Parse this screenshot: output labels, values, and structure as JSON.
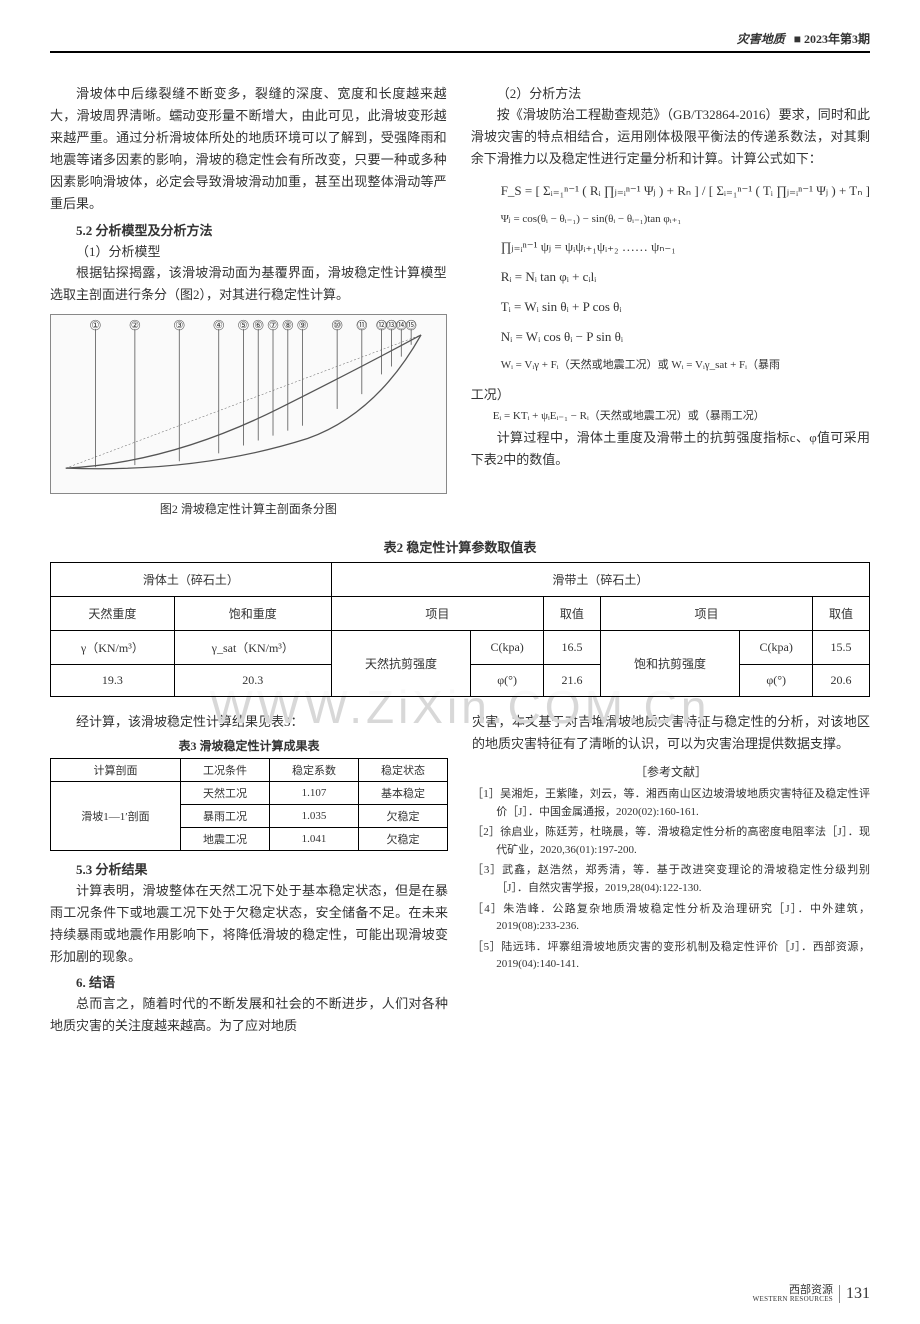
{
  "header": {
    "category": "灾害地质",
    "issue": "■ 2023年第3期"
  },
  "left_col": {
    "p1": "滑坡体中后缘裂缝不断变多，裂缝的深度、宽度和长度越来越大，滑坡周界清晰。蠕动变形量不断增大，由此可见，此滑坡变形越来越严重。通过分析滑坡体所处的地质环境可以了解到，受强降雨和地震等诸多因素的影响，滑坡的稳定性会有所改变，只要一种或多种因素影响滑坡体，必定会导致滑坡滑动加重，甚至出现整体滑动等严重后果。",
    "s52": "5.2 分析模型及分析方法",
    "s52_1": "（1）分析模型",
    "p2": "根据钻探揭露，该滑坡滑动面为基覆界面，滑坡稳定性计算模型选取主剖面进行条分（图2），对其进行稳定性计算。",
    "fig2_caption": "图2 滑坡稳定性计算主剖面条分图",
    "fig2_labels": [
      "①",
      "②",
      "③",
      "④",
      "⑤",
      "⑥",
      "⑦",
      "⑧",
      "⑨",
      "⑩",
      "⑪",
      "⑫",
      "⑬",
      "⑭",
      "⑮"
    ]
  },
  "right_col": {
    "s52_2": "（2）分析方法",
    "p3": "按《滑坡防治工程勘查规范》（GB/T32864-2016）要求，同时和此滑坡灾害的特点相结合，运用刚体极限平衡法的传递系数法，对其剩余下滑推力以及稳定性进行定量分析和计算。计算公式如下：",
    "formulas": {
      "fs": "F_S = [ Σᵢ₌₁ⁿ⁻¹ ( Rᵢ ∏ⱼ₌ᵢⁿ⁻¹ Ψⱼ ) + Rₙ ] / [ Σᵢ₌₁ⁿ⁻¹ ( Tᵢ ∏ⱼ₌ᵢⁿ⁻¹ Ψⱼ ) + Tₙ ]",
      "psi": "Ψⱼ = cos(θᵢ − θᵢ₋₁) − sin(θᵢ − θᵢ₋₁)tan φᵢ₊₁",
      "prod": "∏ⱼ₌ᵢⁿ⁻¹ ψⱼ = ψᵢψᵢ₊₁ψᵢ₊₂ …… ψₙ₋₁",
      "ri": "Rᵢ = Nᵢ tan φᵢ + cᵢlᵢ",
      "ti": "Tᵢ = Wᵢ sin θᵢ + P cos θᵢ",
      "ni": "Nᵢ = Wᵢ cos θᵢ − P sin θᵢ",
      "wi": "Wᵢ = Vᵢγ + Fᵢ（天然或地震工况）或 Wᵢ = Vᵢγ_sat + Fᵢ（暴雨",
      "wi2": "工况）",
      "ei": "Eᵢ = KTᵢ + ψᵢEᵢ₋₁ − Rᵢ（天然或地震工况）或（暴雨工况）"
    },
    "p4": "计算过程中，滑体土重度及滑带土的抗剪强度指标c、φ值可采用下表2中的数值。"
  },
  "table2": {
    "title": "表2  稳定性计算参数取值表",
    "group1": "滑体土（碎石土）",
    "group2": "滑带土（碎石土）",
    "h_nat": "天然重度",
    "h_sat": "饱和重度",
    "h_item": "项目",
    "h_val": "取值",
    "gamma": "γ（KN/m³）",
    "gamma_sat": "γ_sat（KN/m³）",
    "nat_strength": "天然抗剪强度",
    "sat_strength": "饱和抗剪强度",
    "c_label": "C(kpa)",
    "phi_label": "φ(°)",
    "gamma_val": "19.3",
    "gamma_sat_val": "20.3",
    "nat_c": "16.5",
    "nat_phi": "21.6",
    "sat_c": "15.5",
    "sat_phi": "20.6"
  },
  "lower_left": {
    "p5": "经计算，该滑坡稳定性计算结果见表3：",
    "t3_title": "表3  滑坡稳定性计算成果表",
    "t3_h1": "计算剖面",
    "t3_h2": "工况条件",
    "t3_h3": "稳定系数",
    "t3_h4": "稳定状态",
    "t3_profile": "滑坡1—1′剖面",
    "t3_r1_cond": "天然工况",
    "t3_r1_k": "1.107",
    "t3_r1_s": "基本稳定",
    "t3_r2_cond": "暴雨工况",
    "t3_r2_k": "1.035",
    "t3_r2_s": "欠稳定",
    "t3_r3_cond": "地震工况",
    "t3_r3_k": "1.041",
    "t3_r3_s": "欠稳定",
    "s53": "5.3 分析结果",
    "p6": "计算表明，滑坡整体在天然工况下处于基本稳定状态，但是在暴雨工况条件下或地震工况下处于欠稳定状态，安全储备不足。在未来持续暴雨或地震作用影响下，将降低滑坡的稳定性，可能出现滑坡变形加剧的现象。",
    "s6": "6. 结语",
    "p7": "总而言之，随着时代的不断发展和社会的不断进步，人们对各种地质灾害的关注度越来越高。为了应对地质"
  },
  "lower_right": {
    "p8": "灾害，本文基于对吉堆滑坡地质灾害特征与稳定性的分析，对该地区的地质灾害特征有了清晰的认识，可以为灾害治理提供数据支撑。",
    "refs_title": "［参考文献］",
    "refs": [
      "［1］吴湘炬，王紫隆，刘云，等．湘西南山区边坡滑坡地质灾害特征及稳定性评价［J］．中国金属通报，2020(02):160-161.",
      "［2］徐启业，陈廷芳，杜晓晨，等．滑坡稳定性分析的高密度电阻率法［J］．现代矿业，2020,36(01):197-200.",
      "［3］武鑫，赵浩然，郑秀清，等．基于改进突变理论的滑坡稳定性分级判别［J］．自然灾害学报，2019,28(04):122-130.",
      "［4］朱浩峰．公路复杂地质滑坡稳定性分析及治理研究［J］．中外建筑，2019(08):233-236.",
      "［5］陆远玮．坪寨组滑坡地质灾害的变形机制及稳定性评价［J］．西部资源，2019(04):140-141."
    ]
  },
  "footer": {
    "journal_cn": "西部资源",
    "journal_en": "WESTERN RESOURCES",
    "page": "131"
  },
  "watermark": "WWW.ZiXin.COM.Cn",
  "colors": {
    "text": "#333333",
    "border": "#000000",
    "watermark": "#d8d8d8",
    "bg": "#ffffff",
    "fig_stroke": "#555555"
  }
}
